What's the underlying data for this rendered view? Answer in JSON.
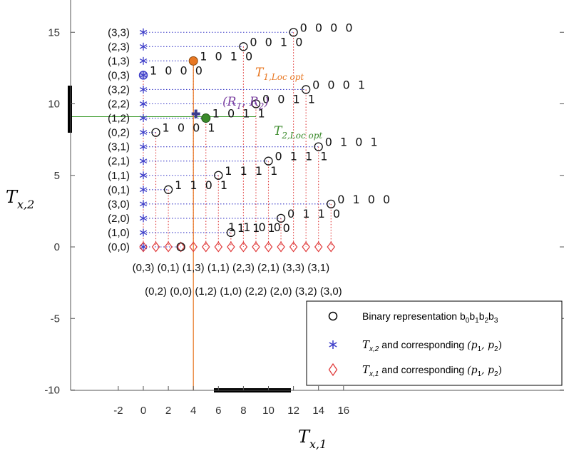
{
  "chart_data": {
    "type": "scatter",
    "xlabel": "T_{x,1}",
    "ylabel": "T_{x,2}",
    "xlim": [
      -3,
      17
    ],
    "ylim": [
      -10,
      17
    ],
    "xticks": [
      -2,
      0,
      2,
      4,
      6,
      8,
      10,
      12,
      14,
      16
    ],
    "yticks": [
      -10,
      -5,
      0,
      5,
      10,
      15
    ],
    "grid": false,
    "legend_position": "bottom-right",
    "legend": [
      {
        "marker": "circle",
        "label": "Binary representation b_0b_1b_2b_3"
      },
      {
        "marker": "star",
        "label": "T_{x,2} and corresponding (p_1, p_2)"
      },
      {
        "marker": "diamond",
        "label": "T_{x,1} and corresponding (p_1, p_2)"
      }
    ],
    "points": [
      {
        "x": 0,
        "y": 12,
        "bits": "1 0 0 0"
      },
      {
        "x": 1,
        "y": 8,
        "bits": "1 0 0 1"
      },
      {
        "x": 2,
        "y": 4,
        "bits": "1 1 0 1"
      },
      {
        "x": 3,
        "y": 0,
        "bits": "1 1 0 0"
      },
      {
        "x": 4,
        "y": 13,
        "bits": "1 0 1 0"
      },
      {
        "x": 5,
        "y": 9,
        "bits": "1 0 1 1"
      },
      {
        "x": 6,
        "y": 5,
        "bits": "1 1 1 1"
      },
      {
        "x": 7,
        "y": 1,
        "bits": "1 1 1 0"
      },
      {
        "x": 8,
        "y": 14,
        "bits": "0 0 1 0"
      },
      {
        "x": 9,
        "y": 10,
        "bits": "0 0 1 1"
      },
      {
        "x": 10,
        "y": 6,
        "bits": "0 1 1 1"
      },
      {
        "x": 11,
        "y": 2,
        "bits": "0 1 1 0"
      },
      {
        "x": 12,
        "y": 15,
        "bits": "0 0 0 0"
      },
      {
        "x": 13,
        "y": 11,
        "bits": "0 0 0 1"
      },
      {
        "x": 14,
        "y": 7,
        "bits": "0 1 0 1"
      },
      {
        "x": 15,
        "y": 3,
        "bits": "0 1 0 0"
      }
    ],
    "tx2_labels": [
      "(0,0)",
      "(1,0)",
      "(2,0)",
      "(3,0)",
      "(0,1)",
      "(1,1)",
      "(2,1)",
      "(3,1)",
      "(0,2)",
      "(1,2)",
      "(2,2)",
      "(3,2)",
      "(0,3)",
      "(1,3)",
      "(2,3)",
      "(3,3)"
    ],
    "tx1_labels": [
      "(0,3)",
      "(0,2)",
      "(0,1)",
      "(0,0)",
      "(1,3)",
      "(1,2)",
      "(1,1)",
      "(1,0)",
      "(2,3)",
      "(2,2)",
      "(2,1)",
      "(2,0)",
      "(3,3)",
      "(3,2)",
      "(3,1)",
      "(3,0)"
    ],
    "annotations": {
      "t1_loc_opt": {
        "x": 4,
        "y": 13,
        "label": "T_{1,Loc opt}",
        "color": "#e87722"
      },
      "t2_loc_opt": {
        "x": 5,
        "y": 9,
        "label": "T_{2,Loc opt}",
        "color": "#3a8a2a"
      },
      "r1_r2": {
        "x": 4.2,
        "y": 9.3,
        "label": "(R_1, R_2)",
        "color": "#7a3fa0"
      }
    }
  },
  "colors": {
    "blue": "#3c3cc8",
    "red": "#e03a3a",
    "orange": "#e87722",
    "green": "#3a8a2a",
    "purple": "#7a3fa0",
    "axis": "#555555"
  }
}
